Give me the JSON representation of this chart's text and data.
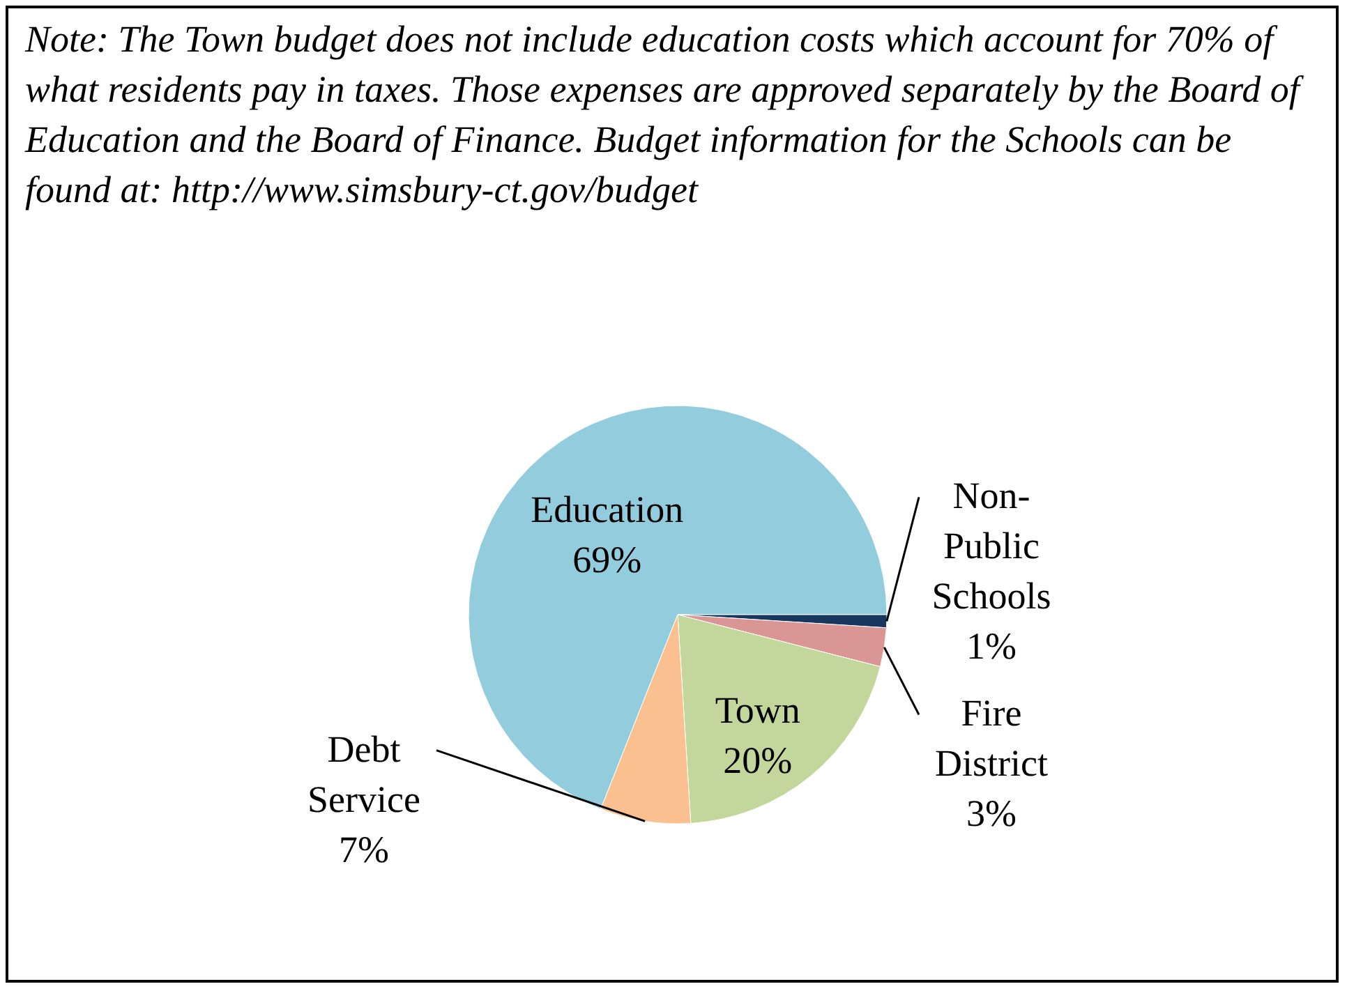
{
  "chart_data": {
    "type": "pie",
    "categories": [
      "Education",
      "Non-Public Schools",
      "Fire District",
      "Town",
      "Debt Service"
    ],
    "values": [
      69,
      1,
      3,
      20,
      7
    ],
    "value_labels": [
      "69%",
      "1%",
      "3%",
      "20%",
      "7%"
    ],
    "colors": [
      "#93cddd",
      "#17375e",
      "#d99694",
      "#c3d69b",
      "#fac090"
    ],
    "annotations": [
      "Note:  The Town budget does not include education costs which account for 70% of what residents pay in taxes.  Those expenses are approved separately by the Board of Education and the Board of Finance. Budget information for the Schools can be found at: http://www.simsbury-ct.gov/budget"
    ]
  }
}
